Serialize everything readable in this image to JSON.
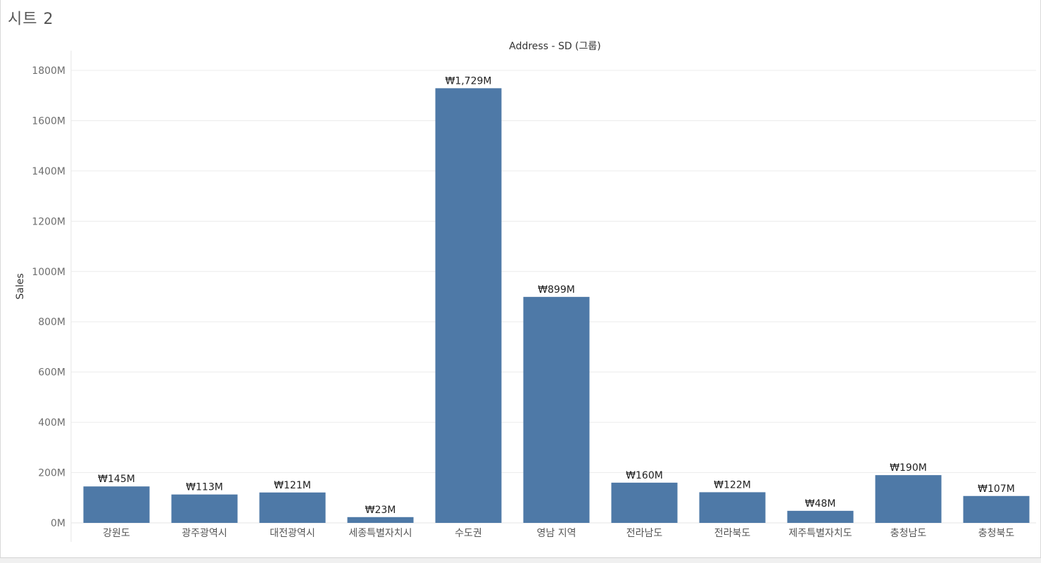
{
  "sheet": {
    "title": "시트 2"
  },
  "chart_data": {
    "type": "bar",
    "title": "Address - SD (그룹)",
    "xlabel": "",
    "ylabel": "Sales",
    "categories": [
      "강원도",
      "광주광역시",
      "대전광역시",
      "세종특별자치시",
      "수도권",
      "영남 지역",
      "전라남도",
      "전라북도",
      "제주특별자치도",
      "충청남도",
      "충청북도"
    ],
    "values": [
      145,
      113,
      121,
      23,
      1729,
      899,
      160,
      122,
      48,
      190,
      107
    ],
    "value_unit": "M",
    "data_labels": [
      "₩145M",
      "₩113M",
      "₩121M",
      "₩23M",
      "₩1,729M",
      "₩899M",
      "₩160M",
      "₩122M",
      "₩48M",
      "₩190M",
      "₩107M"
    ],
    "yticks": [
      0,
      200,
      400,
      600,
      800,
      1000,
      1200,
      1400,
      1600,
      1800
    ],
    "ytick_labels": [
      "0M",
      "200M",
      "400M",
      "600M",
      "800M",
      "1000M",
      "1200M",
      "1400M",
      "1600M",
      "1800M"
    ],
    "ylim": [
      0,
      1880
    ],
    "grid": true,
    "bar_color": "#4e79a7"
  }
}
